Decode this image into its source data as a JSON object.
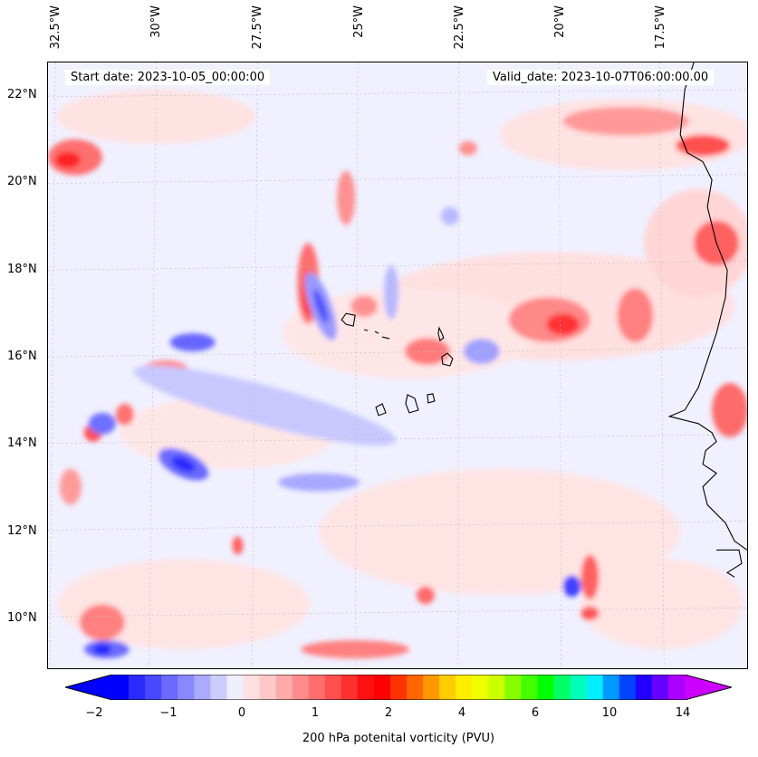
{
  "map": {
    "longitude_labels": [
      "32.5°W",
      "30°W",
      "27.5°W",
      "25°W",
      "22.5°W",
      "20°W",
      "17.5°W"
    ],
    "latitude_labels": [
      "22°N",
      "20°N",
      "18°N",
      "16°N",
      "14°N",
      "12°N",
      "10°N"
    ],
    "start_date": "Start date: 2023-10-05_00:00:00",
    "valid_date": "Valid_date: 2023-10-07T06:00:00.00"
  },
  "colorbar": {
    "label": "200 hPa potenital vorticity (PVU)",
    "tick_labels": [
      "−2",
      "−1",
      "0",
      "1",
      "2",
      "4",
      "6",
      "10",
      "14"
    ],
    "tick_values": [
      -2,
      -1,
      0,
      1,
      2,
      4,
      6,
      10,
      14
    ],
    "colors": [
      "#0000ff",
      "#2a2aff",
      "#4848ff",
      "#6a6aff",
      "#8888ff",
      "#aaaaff",
      "#ccccff",
      "#eeeeff",
      "#ffe0e0",
      "#ffc8c8",
      "#ffaaaa",
      "#ff8c8c",
      "#ff6e6e",
      "#ff5050",
      "#ff3030",
      "#ff1010",
      "#ff0000",
      "#ff3300",
      "#ff6600",
      "#ff9900",
      "#ffcc00",
      "#ffee00",
      "#eeff00",
      "#ccff00",
      "#88ff00",
      "#44ff00",
      "#00ff00",
      "#00ff66",
      "#00ffbb",
      "#00eeff",
      "#0099ff",
      "#0044ff",
      "#2200ff",
      "#6600ff",
      "#aa00ff"
    ],
    "extend_min_color": "#0000ff",
    "extend_max_color": "#cc00ff"
  }
}
